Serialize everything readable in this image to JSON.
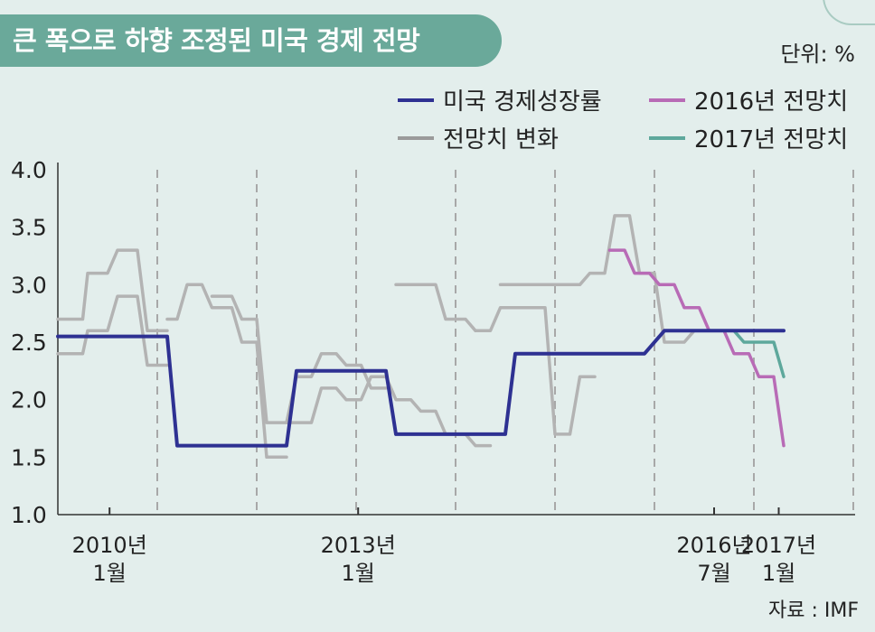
{
  "title": "큰 폭으로 하향 조정된 미국 경제 전망",
  "unit": "단위: %",
  "source": "자료 : IMF",
  "legend": [
    {
      "label": "미국 경제성장률",
      "color": "#2e3192"
    },
    {
      "label": "2016년 전망치",
      "color": "#b86bb6"
    },
    {
      "label": "전망치 변화",
      "color": "#9a9a9a"
    },
    {
      "label": "2017년 전망치",
      "color": "#5ea89c"
    }
  ],
  "chart_data": {
    "type": "line",
    "ylim": [
      1.0,
      4.0
    ],
    "y_ticks": [
      "4.0",
      "3.5",
      "3.0",
      "2.5",
      "2.0",
      "1.5",
      "1.0"
    ],
    "x_ticks": [
      {
        "line1": "2010년",
        "line2": "1월"
      },
      {
        "line1": "2013년",
        "line2": "1월"
      },
      {
        "line1": "2016년",
        "line2": "7월"
      },
      {
        "line1": "2017년",
        "line2": "1월"
      }
    ],
    "growth": {
      "name": "미국 경제성장률",
      "color": "#2e3192",
      "points": [
        [
          0,
          2.55
        ],
        [
          1.1,
          2.55
        ],
        [
          1.2,
          1.6
        ],
        [
          2.3,
          1.6
        ],
        [
          2.4,
          2.25
        ],
        [
          3.3,
          2.25
        ],
        [
          3.4,
          1.7
        ],
        [
          4.5,
          1.7
        ],
        [
          4.6,
          2.4
        ],
        [
          5.9,
          2.4
        ],
        [
          6.1,
          2.6
        ],
        [
          7.3,
          2.6
        ]
      ]
    },
    "forecast_changes": [
      {
        "name": "전망치 변화",
        "color": "#b3b3b3",
        "points": [
          [
            0,
            2.7
          ],
          [
            0.25,
            2.7
          ],
          [
            0.3,
            3.1
          ],
          [
            0.5,
            3.1
          ],
          [
            0.6,
            3.3
          ],
          [
            0.8,
            3.3
          ],
          [
            0.9,
            2.6
          ],
          [
            1.1,
            2.6
          ]
        ]
      },
      {
        "name": "전망치 변화",
        "color": "#b3b3b3",
        "points": [
          [
            0,
            2.4
          ],
          [
            0.25,
            2.4
          ],
          [
            0.3,
            2.6
          ],
          [
            0.5,
            2.6
          ],
          [
            0.6,
            2.9
          ],
          [
            0.8,
            2.9
          ],
          [
            0.9,
            2.3
          ],
          [
            1.1,
            2.3
          ]
        ]
      },
      {
        "name": "전망치 변화",
        "color": "#b3b3b3",
        "points": [
          [
            1.1,
            2.7
          ],
          [
            1.2,
            2.7
          ],
          [
            1.3,
            3.0
          ],
          [
            1.45,
            3.0
          ],
          [
            1.55,
            2.8
          ],
          [
            1.75,
            2.8
          ],
          [
            1.85,
            2.5
          ],
          [
            2.0,
            2.5
          ],
          [
            2.1,
            1.5
          ],
          [
            2.3,
            1.5
          ]
        ]
      },
      {
        "name": "전망치 변화",
        "color": "#b3b3b3",
        "points": [
          [
            1.55,
            2.9
          ],
          [
            1.75,
            2.9
          ],
          [
            1.85,
            2.7
          ],
          [
            2.0,
            2.7
          ],
          [
            2.1,
            1.8
          ],
          [
            2.3,
            1.8
          ],
          [
            2.4,
            2.2
          ],
          [
            2.55,
            2.2
          ],
          [
            2.65,
            2.4
          ],
          [
            2.8,
            2.4
          ],
          [
            2.9,
            2.3
          ],
          [
            3.05,
            2.3
          ],
          [
            3.15,
            2.1
          ],
          [
            3.3,
            2.1
          ]
        ]
      },
      {
        "name": "전망치 변화",
        "color": "#b3b3b3",
        "points": [
          [
            2.3,
            1.8
          ],
          [
            2.55,
            1.8
          ],
          [
            2.65,
            2.1
          ],
          [
            2.8,
            2.1
          ],
          [
            2.9,
            2.0
          ],
          [
            3.05,
            2.0
          ],
          [
            3.15,
            2.2
          ],
          [
            3.3,
            2.2
          ],
          [
            3.4,
            2.0
          ],
          [
            3.55,
            2.0
          ],
          [
            3.65,
            1.9
          ],
          [
            3.8,
            1.9
          ],
          [
            3.9,
            1.7
          ],
          [
            4.1,
            1.7
          ],
          [
            4.2,
            1.6
          ],
          [
            4.35,
            1.6
          ]
        ]
      },
      {
        "name": "전망치 변화",
        "color": "#b3b3b3",
        "points": [
          [
            3.4,
            3.0
          ],
          [
            3.8,
            3.0
          ],
          [
            3.9,
            2.7
          ],
          [
            4.1,
            2.7
          ],
          [
            4.2,
            2.6
          ],
          [
            4.35,
            2.6
          ],
          [
            4.45,
            2.8
          ],
          [
            4.9,
            2.8
          ],
          [
            5.0,
            1.7
          ],
          [
            5.15,
            1.7
          ],
          [
            5.25,
            2.2
          ],
          [
            5.4,
            2.2
          ]
        ]
      },
      {
        "name": "전망치 변화",
        "color": "#b3b3b3",
        "points": [
          [
            4.45,
            3.0
          ],
          [
            5.25,
            3.0
          ],
          [
            5.35,
            3.1
          ],
          [
            5.5,
            3.1
          ],
          [
            5.6,
            3.6
          ],
          [
            5.75,
            3.6
          ],
          [
            5.85,
            3.1
          ],
          [
            6.0,
            3.1
          ],
          [
            6.1,
            2.5
          ],
          [
            6.3,
            2.5
          ],
          [
            6.4,
            2.6
          ],
          [
            6.6,
            2.6
          ]
        ]
      },
      {
        "name": "2016년 전망치",
        "color": "#b86bb6",
        "points": [
          [
            5.55,
            3.3
          ],
          [
            5.7,
            3.3
          ],
          [
            5.8,
            3.1
          ],
          [
            5.95,
            3.1
          ],
          [
            6.05,
            3.0
          ],
          [
            6.2,
            3.0
          ],
          [
            6.3,
            2.8
          ],
          [
            6.45,
            2.8
          ],
          [
            6.55,
            2.6
          ],
          [
            6.7,
            2.6
          ],
          [
            6.8,
            2.4
          ],
          [
            6.95,
            2.4
          ],
          [
            7.05,
            2.2
          ],
          [
            7.2,
            2.2
          ],
          [
            7.3,
            1.6
          ]
        ]
      },
      {
        "name": "2017년 전망치",
        "color": "#5ea89c",
        "points": [
          [
            6.6,
            2.6
          ],
          [
            6.8,
            2.6
          ],
          [
            6.9,
            2.5
          ],
          [
            7.2,
            2.5
          ],
          [
            7.3,
            2.2
          ]
        ]
      }
    ]
  }
}
